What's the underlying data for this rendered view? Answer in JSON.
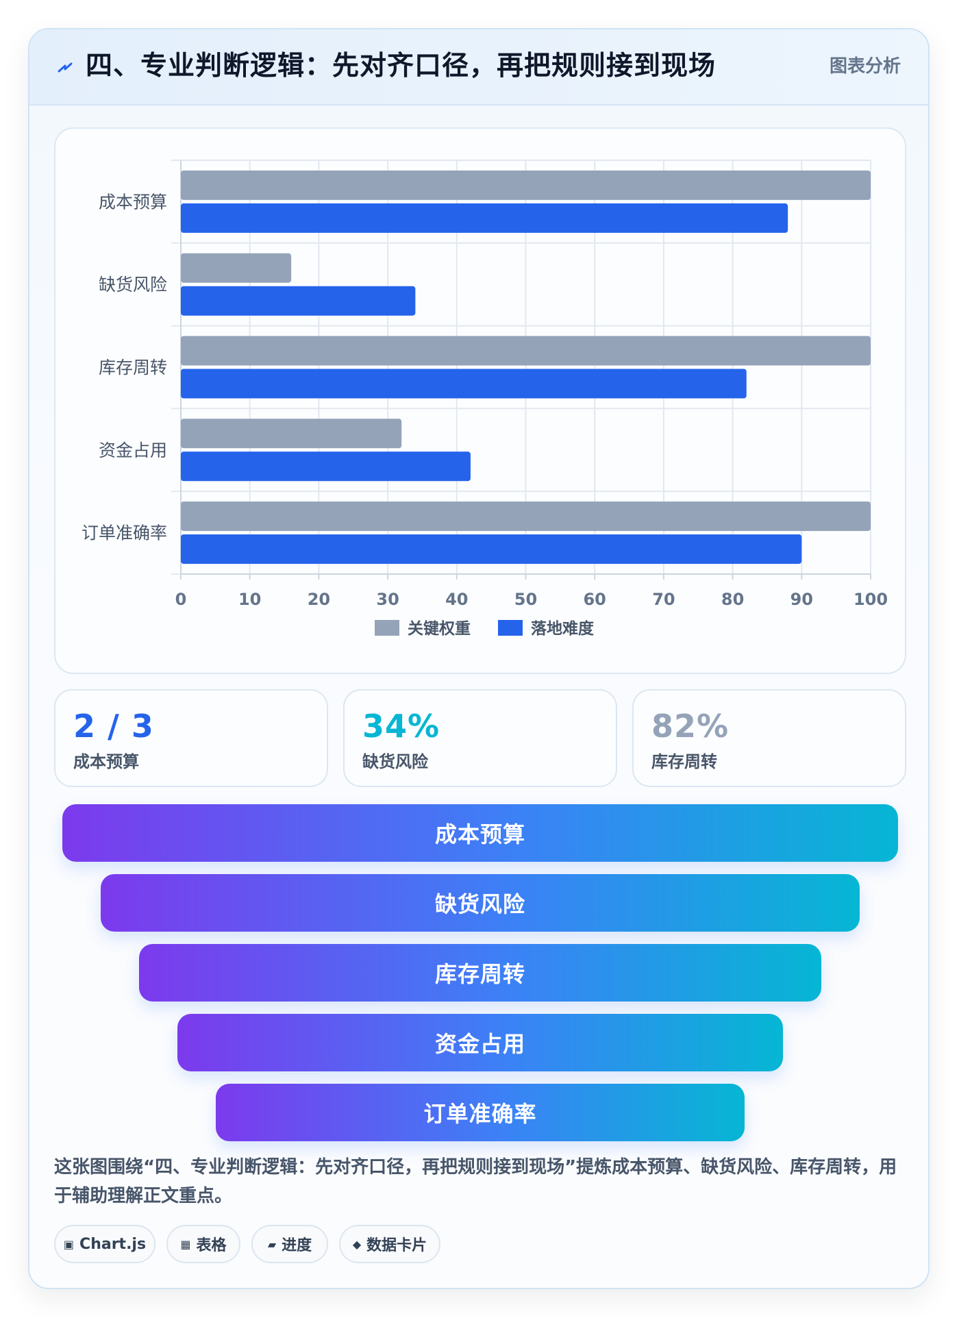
{
  "header": {
    "icon": "lightning-icon",
    "title": "四、专业判断逻辑：先对齐口径，再把规则接到现场",
    "badge": "图表分析"
  },
  "chart_data": {
    "type": "bar",
    "orientation": "horizontal",
    "categories": [
      "成本预算",
      "缺货风险",
      "库存周转",
      "资金占用",
      "订单准确率"
    ],
    "series": [
      {
        "name": "关键权重",
        "color": "#94a3b8",
        "values": [
          100,
          16,
          100,
          32,
          100
        ]
      },
      {
        "name": "落地难度",
        "color": "#2563eb",
        "values": [
          88,
          34,
          82,
          42,
          90
        ]
      }
    ],
    "xlim": [
      0,
      100
    ],
    "xticks": [
      0,
      10,
      20,
      30,
      40,
      50,
      60,
      70,
      80,
      90,
      100
    ],
    "grid": true,
    "legend": "bottom"
  },
  "stats": [
    {
      "value": "2 / 3",
      "label": "成本预算",
      "color": "#2563eb"
    },
    {
      "value": "34%",
      "label": "缺货风险",
      "color": "#06b6d4"
    },
    {
      "value": "82%",
      "label": "库存周转",
      "color": "#94a3b8"
    }
  ],
  "funnel": {
    "items": [
      "成本预算",
      "缺货风险",
      "库存周转",
      "资金占用",
      "订单准确率"
    ],
    "gradient": [
      "#7c3aed",
      "#3b82f6",
      "#06b6d4"
    ]
  },
  "summary": "这张图围绕“四、专业判断逻辑：先对齐口径，再把规则接到现场”提炼成本预算、缺货风险、库存周转，用于辅助理解正文重点。",
  "tags": [
    {
      "icon": "chip-icon",
      "glyph": "▣",
      "label": "Chart.js"
    },
    {
      "icon": "table-icon",
      "glyph": "▦",
      "label": "表格"
    },
    {
      "icon": "progress-icon",
      "glyph": "▰",
      "label": "进度"
    },
    {
      "icon": "diamond-icon",
      "glyph": "◆",
      "label": "数据卡片"
    }
  ]
}
